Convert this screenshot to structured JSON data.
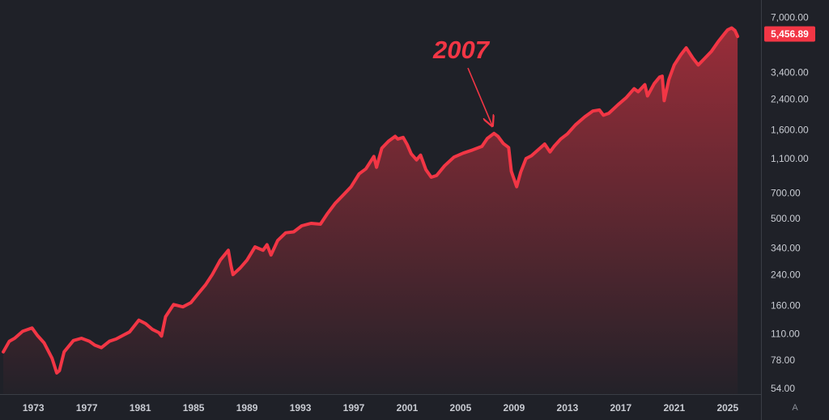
{
  "colors": {
    "background": "#1f2128",
    "line": "#f23645",
    "axis_text": "#c9ccd3",
    "axis_line": "#3a3d45",
    "price_label_bg": "#f23645"
  },
  "scale_mode_label": "A",
  "current_price_label": "5,456.89",
  "annotation": {
    "text": "2007",
    "arrow_target_x": 2007.5,
    "arrow_target_y": 1550
  },
  "chart_data": {
    "type": "area",
    "title": "",
    "xlabel": "",
    "ylabel": "",
    "y_scale": "log",
    "xlim": [
      1970.5,
      2027.5
    ],
    "ylim": [
      50,
      8800
    ],
    "x_tick_labels": [
      "1973",
      "1977",
      "1981",
      "1985",
      "1989",
      "1993",
      "1997",
      "2001",
      "2005",
      "2009",
      "2013",
      "2017",
      "2021",
      "2025"
    ],
    "y_tick_labels": [
      "54.00",
      "78.00",
      "110.00",
      "160.00",
      "240.00",
      "340.00",
      "500.00",
      "700.00",
      "1,100.00",
      "1,600.00",
      "2,400.00",
      "3,400.00",
      "7,000.00"
    ],
    "series": [
      {
        "x": [
          1970.75,
          1971.2,
          1971.6,
          1972.2,
          1972.9,
          1973.3,
          1973.8,
          1974.4,
          1974.75,
          1974.95,
          1975.3,
          1976.0,
          1976.6,
          1977.2,
          1977.6,
          1978.1,
          1978.7,
          1979.2,
          1979.8,
          1980.2,
          1980.9,
          1981.4,
          1981.9,
          1982.4,
          1982.6,
          1982.9,
          1983.5,
          1984.2,
          1984.8,
          1985.3,
          1985.9,
          1986.4,
          1987.0,
          1987.6,
          1987.8,
          1987.95,
          1988.5,
          1989.0,
          1989.6,
          1990.2,
          1990.5,
          1990.8,
          1991.3,
          1991.9,
          1992.5,
          1993.1,
          1993.8,
          1994.5,
          1995.0,
          1995.6,
          1996.2,
          1996.8,
          1997.4,
          1997.9,
          1998.5,
          1998.7,
          1999.1,
          1999.6,
          2000.1,
          2000.3,
          2000.7,
          2001.0,
          2001.3,
          2001.7,
          2002.0,
          2002.4,
          2002.8,
          2003.2,
          2003.8,
          2004.5,
          2005.2,
          2005.9,
          2006.6,
          2007.0,
          2007.5,
          2007.8,
          2008.2,
          2008.6,
          2008.8,
          2009.2,
          2009.5,
          2009.9,
          2010.3,
          2010.8,
          2011.3,
          2011.7,
          2012.0,
          2012.5,
          2013.0,
          2013.6,
          2014.3,
          2014.9,
          2015.4,
          2015.7,
          2016.1,
          2016.8,
          2017.4,
          2018.0,
          2018.3,
          2018.8,
          2019.0,
          2019.5,
          2019.9,
          2020.1,
          2020.25,
          2020.6,
          2021.0,
          2021.5,
          2021.9,
          2022.4,
          2022.8,
          2023.3,
          2023.8,
          2024.3,
          2024.8,
          2025.0,
          2025.3,
          2025.55,
          2025.75
        ],
        "y": [
          87,
          100,
          104,
          114,
          119,
          108,
          98,
          80,
          66,
          68,
          87,
          101,
          104,
          100,
          95,
          92,
          100,
          103,
          109,
          113,
          132,
          126,
          117,
          112,
          107,
          138,
          162,
          157,
          166,
          185,
          210,
          240,
          290,
          330,
          270,
          240,
          262,
          290,
          345,
          330,
          355,
          310,
          375,
          415,
          420,
          455,
          470,
          465,
          530,
          610,
          680,
          760,
          900,
          960,
          1130,
          980,
          1260,
          1380,
          1470,
          1420,
          1450,
          1320,
          1170,
          1080,
          1150,
          950,
          860,
          880,
          1000,
          1120,
          1180,
          1230,
          1290,
          1430,
          1530,
          1470,
          1340,
          1270,
          930,
          760,
          920,
          1100,
          1140,
          1230,
          1330,
          1200,
          1290,
          1420,
          1520,
          1710,
          1900,
          2050,
          2080,
          1940,
          1990,
          2230,
          2440,
          2750,
          2640,
          2900,
          2500,
          2940,
          3200,
          3240,
          2350,
          3100,
          3750,
          4300,
          4700,
          4100,
          3750,
          4100,
          4500,
          5100,
          5700,
          5950,
          6100,
          5900,
          5456.89
        ]
      }
    ]
  }
}
